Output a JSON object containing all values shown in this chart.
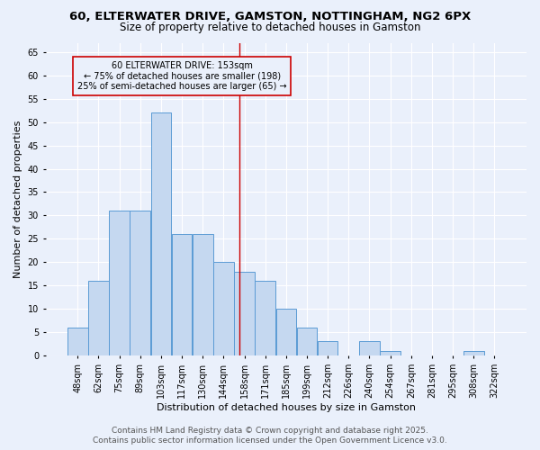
{
  "title_line1": "60, ELTERWATER DRIVE, GAMSTON, NOTTINGHAM, NG2 6PX",
  "title_line2": "Size of property relative to detached houses in Gamston",
  "xlabel": "Distribution of detached houses by size in Gamston",
  "ylabel": "Number of detached properties",
  "bar_labels": [
    "48sqm",
    "62sqm",
    "75sqm",
    "89sqm",
    "103sqm",
    "117sqm",
    "130sqm",
    "144sqm",
    "158sqm",
    "171sqm",
    "185sqm",
    "199sqm",
    "212sqm",
    "226sqm",
    "240sqm",
    "254sqm",
    "267sqm",
    "281sqm",
    "295sqm",
    "308sqm",
    "322sqm"
  ],
  "bar_values": [
    6,
    16,
    31,
    31,
    52,
    26,
    26,
    20,
    18,
    16,
    10,
    6,
    3,
    0,
    3,
    1,
    0,
    0,
    0,
    1,
    0
  ],
  "bar_color": "#C5D8F0",
  "bar_edgecolor": "#5B9BD5",
  "ylim": [
    0,
    67
  ],
  "yticks": [
    0,
    5,
    10,
    15,
    20,
    25,
    30,
    35,
    40,
    45,
    50,
    55,
    60,
    65
  ],
  "vline_color": "#CC0000",
  "annotation_text": "60 ELTERWATER DRIVE: 153sqm\n← 75% of detached houses are smaller (198)\n25% of semi-detached houses are larger (65) →",
  "annotation_box_edgecolor": "#CC0000",
  "footer_line1": "Contains HM Land Registry data © Crown copyright and database right 2025.",
  "footer_line2": "Contains public sector information licensed under the Open Government Licence v3.0.",
  "bg_color": "#EAF0FB",
  "grid_color": "#FFFFFF",
  "title_fontsize": 9.5,
  "subtitle_fontsize": 8.5,
  "axis_label_fontsize": 8,
  "tick_fontsize": 7,
  "annotation_fontsize": 7,
  "footer_fontsize": 6.5
}
